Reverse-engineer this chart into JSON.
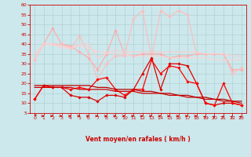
{
  "x": [
    0,
    1,
    2,
    3,
    4,
    5,
    6,
    7,
    8,
    9,
    10,
    11,
    12,
    13,
    14,
    15,
    16,
    17,
    18,
    19,
    20,
    21,
    22,
    23
  ],
  "series": [
    {
      "name": "rafales_light1",
      "color": "#ffaaaa",
      "linewidth": 0.8,
      "marker": "D",
      "markersize": 1.8,
      "values": [
        32,
        40,
        48,
        40,
        39,
        36,
        33,
        27,
        35,
        47,
        35,
        34,
        35,
        35,
        35,
        33,
        34,
        34,
        35,
        35,
        35,
        35,
        27,
        27
      ]
    },
    {
      "name": "rafales_light2",
      "color": "#ffbbbb",
      "linewidth": 0.8,
      "marker": "D",
      "markersize": 1.8,
      "values": [
        32,
        40,
        40,
        40,
        38,
        44,
        35,
        22,
        30,
        34,
        34,
        53,
        57,
        33,
        57,
        54,
        57,
        55,
        35,
        35,
        35,
        35,
        25,
        28
      ]
    },
    {
      "name": "moy_light1",
      "color": "#ffcccc",
      "linewidth": 0.8,
      "marker": null,
      "markersize": 0,
      "values": [
        35,
        40,
        40,
        39,
        38,
        40,
        40,
        33,
        35,
        37,
        36,
        36,
        36,
        36,
        36,
        36,
        36,
        36,
        36,
        35,
        35,
        35,
        34,
        34
      ]
    },
    {
      "name": "moy_light2",
      "color": "#ffd0d0",
      "linewidth": 0.8,
      "marker": null,
      "markersize": 0,
      "values": [
        32,
        40,
        40,
        38,
        38,
        39,
        38,
        36,
        36,
        35,
        35,
        34,
        34,
        34,
        34,
        33,
        33,
        33,
        33,
        33,
        32,
        32,
        32,
        32
      ]
    },
    {
      "name": "vent_dark1",
      "color": "#dd0000",
      "linewidth": 0.9,
      "marker": "D",
      "markersize": 1.8,
      "values": [
        12,
        19,
        18,
        18,
        14,
        13,
        13,
        11,
        14,
        14,
        13,
        17,
        25,
        33,
        17,
        30,
        30,
        29,
        20,
        10,
        9,
        10,
        10,
        9
      ]
    },
    {
      "name": "vent_dark2",
      "color": "#ff0000",
      "linewidth": 0.9,
      "marker": "D",
      "markersize": 1.8,
      "values": [
        12,
        19,
        18,
        18,
        17,
        18,
        17,
        22,
        23,
        17,
        14,
        17,
        17,
        32,
        25,
        29,
        28,
        21,
        20,
        10,
        9,
        20,
        10,
        9
      ]
    },
    {
      "name": "moy_dark1",
      "color": "#bb0000",
      "linewidth": 0.9,
      "marker": null,
      "markersize": 0,
      "values": [
        19,
        19,
        19,
        19,
        19,
        19,
        19,
        18,
        18,
        17,
        17,
        17,
        16,
        16,
        15,
        15,
        14,
        14,
        13,
        13,
        12,
        12,
        11,
        11
      ]
    },
    {
      "name": "moy_dark2",
      "color": "#cc0000",
      "linewidth": 0.9,
      "marker": null,
      "markersize": 0,
      "values": [
        18,
        18,
        18,
        18,
        18,
        17,
        17,
        17,
        17,
        16,
        16,
        16,
        15,
        15,
        15,
        14,
        14,
        13,
        13,
        12,
        12,
        11,
        11,
        10
      ]
    }
  ],
  "xlabel": "Vent moyen/en rafales ( km/h )",
  "ylim": [
    5,
    60
  ],
  "yticks": [
    5,
    10,
    15,
    20,
    25,
    30,
    35,
    40,
    45,
    50,
    55,
    60
  ],
  "xlim": [
    -0.5,
    23.5
  ],
  "xticks": [
    0,
    1,
    2,
    3,
    4,
    5,
    6,
    7,
    8,
    9,
    10,
    11,
    12,
    13,
    14,
    15,
    16,
    17,
    18,
    19,
    20,
    21,
    22,
    23
  ],
  "background_color": "#cce8ec",
  "grid_color": "#aacccc",
  "tick_color": "#cc0000",
  "label_color": "#cc0000",
  "arrow_color": "#cc0000",
  "arrow_directions": [
    225,
    90,
    90,
    90,
    90,
    90,
    90,
    90,
    90,
    90,
    90,
    90,
    90,
    90,
    90,
    90,
    90,
    90,
    90,
    45,
    45,
    45,
    45,
    45
  ]
}
